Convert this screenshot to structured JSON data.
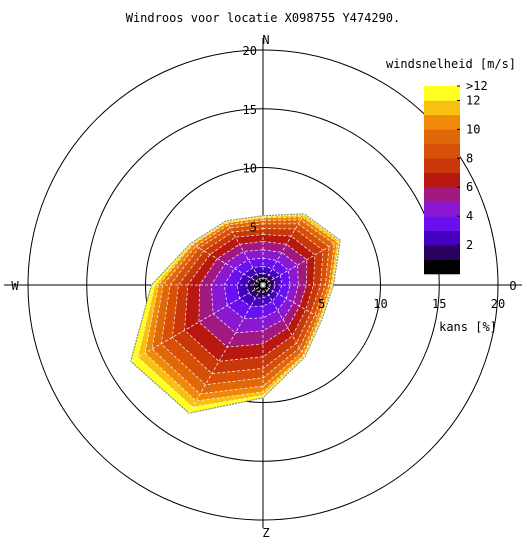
{
  "chart_data": {
    "type": "windrose",
    "title": "Windroos voor locatie X098755 Y474290.",
    "compass": {
      "north": "N",
      "east": "O",
      "south": "Z",
      "west": "W"
    },
    "radial_axis": {
      "label": "kans [%]",
      "range": [
        0,
        20
      ],
      "ticks": [
        5,
        10,
        15,
        20
      ],
      "tick_labels": [
        "5",
        "10",
        "15",
        "20"
      ],
      "grid_rings": [
        5,
        10,
        15,
        20
      ]
    },
    "colorbar": {
      "title": "windsnelheid [m/s]",
      "tick_labels": [
        ">12",
        "12",
        "10",
        "8",
        "6",
        "4",
        "2"
      ],
      "tick_values": [
        13,
        12,
        10,
        8,
        6,
        4,
        2
      ],
      "bins_low_to_high": [
        {
          "upper": 1,
          "color": "#000000"
        },
        {
          "upper": 2,
          "color": "#2a0060"
        },
        {
          "upper": 3,
          "color": "#4500c0"
        },
        {
          "upper": 4,
          "color": "#6a10f0"
        },
        {
          "upper": 5,
          "color": "#8a18d0"
        },
        {
          "upper": 6,
          "color": "#a01880"
        },
        {
          "upper": 7,
          "color": "#b81810"
        },
        {
          "upper": 8,
          "color": "#c83808"
        },
        {
          "upper": 9,
          "color": "#d85008"
        },
        {
          "upper": 10,
          "color": "#e06808"
        },
        {
          "upper": 11,
          "color": "#f08808"
        },
        {
          "upper": 12,
          "color": "#f8c010"
        },
        {
          "upper": 99,
          "color": "#ffff20"
        }
      ]
    },
    "direction_sectors_deg": [
      0,
      30,
      60,
      90,
      120,
      150,
      180,
      210,
      240,
      270,
      300,
      330
    ],
    "speed_contours": [
      {
        "speed_upper": 1,
        "radii_pct": [
          0.6,
          0.6,
          0.6,
          0.6,
          0.6,
          0.6,
          0.6,
          0.7,
          0.8,
          0.8,
          0.7,
          0.6
        ]
      },
      {
        "speed_upper": 2,
        "radii_pct": [
          1.0,
          1.0,
          1.1,
          1.0,
          1.0,
          1.0,
          1.1,
          1.3,
          1.4,
          1.4,
          1.2,
          1.1
        ]
      },
      {
        "speed_upper": 3,
        "radii_pct": [
          1.6,
          1.6,
          1.7,
          1.6,
          1.5,
          1.6,
          1.8,
          2.1,
          2.3,
          2.2,
          1.9,
          1.7
        ]
      },
      {
        "speed_upper": 4,
        "radii_pct": [
          2.3,
          2.4,
          2.5,
          2.3,
          2.3,
          2.5,
          2.8,
          3.3,
          3.5,
          3.3,
          2.8,
          2.5
        ]
      },
      {
        "speed_upper": 5,
        "radii_pct": [
          3.0,
          3.2,
          3.4,
          3.0,
          3.0,
          3.4,
          3.9,
          4.7,
          4.9,
          4.4,
          3.7,
          3.3
        ]
      },
      {
        "speed_upper": 6,
        "radii_pct": [
          3.7,
          4.0,
          4.3,
          3.7,
          3.6,
          4.2,
          5.0,
          6.1,
          6.3,
          5.4,
          4.5,
          4.0
        ]
      },
      {
        "speed_upper": 7,
        "radii_pct": [
          4.3,
          4.8,
          5.1,
          4.3,
          4.2,
          5.0,
          6.1,
          7.5,
          7.7,
          6.4,
          5.2,
          4.7
        ]
      },
      {
        "speed_upper": 8,
        "radii_pct": [
          4.8,
          5.5,
          5.9,
          4.9,
          4.7,
          5.7,
          7.1,
          8.7,
          8.9,
          7.2,
          5.8,
          5.2
        ]
      },
      {
        "speed_upper": 9,
        "radii_pct": [
          5.2,
          6.0,
          6.5,
          5.3,
          5.1,
          6.2,
          7.9,
          9.8,
          10.0,
          7.9,
          6.3,
          5.6
        ]
      },
      {
        "speed_upper": 10,
        "radii_pct": [
          5.5,
          6.4,
          7.0,
          5.6,
          5.4,
          6.6,
          8.6,
          10.7,
          10.9,
          8.5,
          6.6,
          5.9
        ]
      },
      {
        "speed_upper": 11,
        "radii_pct": [
          5.7,
          6.7,
          7.3,
          5.8,
          5.6,
          6.9,
          9.1,
          11.4,
          11.6,
          8.9,
          6.9,
          6.1
        ]
      },
      {
        "speed_upper": 12,
        "radii_pct": [
          5.8,
          6.9,
          7.5,
          5.9,
          5.7,
          7.0,
          9.4,
          12.0,
          12.3,
          9.2,
          7.0,
          6.2
        ]
      },
      {
        "speed_upper": 99,
        "radii_pct": [
          5.9,
          7.0,
          7.6,
          6.0,
          5.8,
          7.1,
          9.6,
          12.6,
          13.0,
          9.5,
          7.1,
          6.3
        ]
      }
    ]
  }
}
